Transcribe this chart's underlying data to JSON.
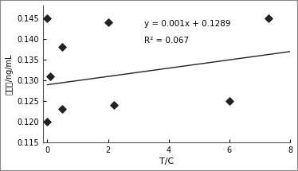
{
  "scatter_x": [
    0,
    0,
    0.1,
    0.5,
    0.5,
    2,
    2.2,
    6,
    7.3
  ],
  "scatter_y": [
    0.145,
    0.12,
    0.131,
    0.123,
    0.138,
    0.144,
    0.124,
    0.125,
    0.145
  ],
  "slope": 0.001,
  "intercept": 0.1289,
  "r2": 0.067,
  "line_x": [
    0,
    8
  ],
  "xlabel": "T/C",
  "ylabel": "标本値/ng/mL",
  "xlim": [
    -0.15,
    8
  ],
  "ylim": [
    0.115,
    0.148
  ],
  "yticks": [
    0.115,
    0.12,
    0.125,
    0.13,
    0.135,
    0.14,
    0.145
  ],
  "xticks": [
    0,
    2,
    4,
    6,
    8
  ],
  "equation_text": "y = 0.001x + 0.1289",
  "r2_text": "R² = 0.067",
  "marker_color": "#222222",
  "line_color": "#222222",
  "bg_color": "#ffffff",
  "fig_color": "#ffffff",
  "border_color": "#888888"
}
